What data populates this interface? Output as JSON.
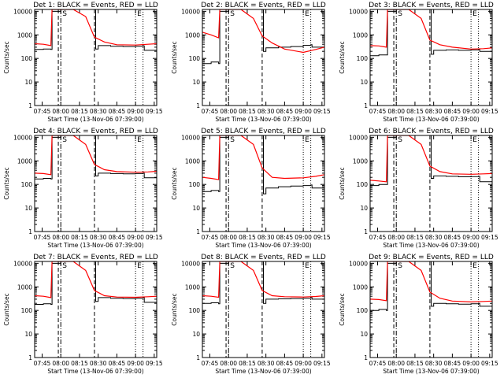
{
  "common": {
    "series": [
      {
        "name": "BLACK = Events",
        "color": "#000000"
      },
      {
        "name": "RED = LLD",
        "color": "#ff0000"
      }
    ],
    "ylabel": "Counts/sec",
    "xlabel": "Start Time (13-Nov-06 07:39:00)",
    "xticks": [
      "07:45",
      "08:00",
      "08:15",
      "08:30",
      "08:45",
      "09:00",
      "09:15"
    ],
    "yticks": [
      "1",
      "10",
      "100",
      "1000",
      "10000"
    ],
    "marks": {
      "S": "S",
      "E": "E"
    }
  },
  "chart_data": [
    {
      "type": "line",
      "title": "Det 1: BLACK = Events, RED = LLD",
      "xlim": [
        "07:39",
        "09:17"
      ],
      "ylim": [
        1,
        12000
      ],
      "yscale": "log",
      "vlines": {
        "dashdot": "08:00",
        "dashed": [
          "07:58",
          "08:27"
        ],
        "dotted": [
          "09:00",
          "09:06"
        ]
      },
      "series": [
        {
          "name": "Events",
          "x": [
            "07:39",
            "07:46",
            "07:52",
            "07:53",
            "08:00",
            "08:27",
            "08:28",
            "08:30",
            "08:40",
            "08:50",
            "09:00",
            "09:06",
            "09:07",
            "09:17"
          ],
          "values": [
            240,
            250,
            240,
            10000,
            12000,
            12000,
            250,
            350,
            330,
            320,
            330,
            340,
            220,
            200
          ]
        },
        {
          "name": "LLD",
          "x": [
            "07:39",
            "07:46",
            "07:52",
            "07:53",
            "08:00",
            "08:10",
            "08:20",
            "08:27",
            "08:35",
            "08:45",
            "09:00",
            "09:10",
            "09:17"
          ],
          "values": [
            420,
            400,
            350,
            12000,
            12000,
            12000,
            6000,
            800,
            500,
            380,
            370,
            400,
            420
          ]
        }
      ]
    },
    {
      "type": "line",
      "title": "Det 2: BLACK = Events, RED = LLD",
      "xlim": [
        "07:39",
        "09:17"
      ],
      "ylim": [
        1,
        12000
      ],
      "yscale": "log",
      "vlines": {
        "dashdot": "08:00",
        "dashed": [
          "07:58",
          "08:27"
        ],
        "dotted": [
          "09:00",
          "09:06"
        ]
      },
      "series": [
        {
          "name": "Events",
          "x": [
            "07:39",
            "07:46",
            "07:52",
            "07:53",
            "08:00",
            "08:27",
            "08:28",
            "08:30",
            "08:40",
            "08:50",
            "09:00",
            "09:06",
            "09:07",
            "09:17"
          ],
          "values": [
            60,
            70,
            60,
            10000,
            12000,
            12000,
            200,
            280,
            300,
            320,
            360,
            380,
            300,
            220
          ]
        },
        {
          "name": "LLD",
          "x": [
            "07:39",
            "07:46",
            "07:52",
            "07:53",
            "08:00",
            "08:10",
            "08:20",
            "08:27",
            "08:35",
            "08:45",
            "09:00",
            "09:10",
            "09:17"
          ],
          "values": [
            1300,
            1000,
            750,
            12000,
            12000,
            12000,
            5000,
            900,
            450,
            250,
            180,
            240,
            300
          ]
        }
      ]
    },
    {
      "type": "line",
      "title": "Det 3: BLACK = Events, RED = LLD",
      "xlim": [
        "07:39",
        "09:17"
      ],
      "ylim": [
        1,
        12000
      ],
      "yscale": "log",
      "vlines": {
        "dashdot": "08:00",
        "dashed": [
          "07:58",
          "08:27"
        ],
        "dotted": [
          "09:00",
          "09:06"
        ]
      },
      "series": [
        {
          "name": "Events",
          "x": [
            "07:39",
            "07:46",
            "07:52",
            "07:53",
            "08:00",
            "08:27",
            "08:28",
            "08:30",
            "08:40",
            "08:50",
            "09:00",
            "09:06",
            "09:07",
            "09:17"
          ],
          "values": [
            130,
            140,
            140,
            10000,
            12000,
            12000,
            150,
            220,
            230,
            220,
            230,
            240,
            200,
            180
          ]
        },
        {
          "name": "LLD",
          "x": [
            "07:39",
            "07:46",
            "07:52",
            "07:53",
            "08:00",
            "08:10",
            "08:20",
            "08:27",
            "08:35",
            "08:45",
            "09:00",
            "09:10",
            "09:17"
          ],
          "values": [
            350,
            340,
            300,
            12000,
            12000,
            12000,
            5000,
            600,
            380,
            300,
            250,
            260,
            280
          ]
        }
      ]
    },
    {
      "type": "line",
      "title": "Det 4: BLACK = Events, RED = LLD",
      "xlim": [
        "07:39",
        "09:17"
      ],
      "ylim": [
        1,
        12000
      ],
      "yscale": "log",
      "vlines": {
        "dashdot": "08:00",
        "dashed": [
          "07:58",
          "08:27"
        ],
        "dotted": [
          "09:00",
          "09:06"
        ]
      },
      "series": [
        {
          "name": "Events",
          "x": [
            "07:39",
            "07:46",
            "07:52",
            "07:53",
            "08:00",
            "08:27",
            "08:28",
            "08:30",
            "08:40",
            "08:50",
            "09:00",
            "09:06",
            "09:07",
            "09:17"
          ],
          "values": [
            170,
            180,
            170,
            10000,
            12000,
            12000,
            230,
            300,
            290,
            280,
            290,
            300,
            190,
            160
          ]
        },
        {
          "name": "LLD",
          "x": [
            "07:39",
            "07:46",
            "07:52",
            "07:53",
            "08:00",
            "08:10",
            "08:20",
            "08:27",
            "08:35",
            "08:45",
            "09:00",
            "09:10",
            "09:17"
          ],
          "values": [
            300,
            290,
            260,
            12000,
            12000,
            12000,
            5000,
            700,
            420,
            350,
            330,
            340,
            360
          ]
        }
      ]
    },
    {
      "type": "line",
      "title": "Det 5: BLACK = Events, RED = LLD",
      "xlim": [
        "07:39",
        "09:17"
      ],
      "ylim": [
        1,
        12000
      ],
      "yscale": "log",
      "vlines": {
        "dashdot": "08:00",
        "dashed": [
          "07:58",
          "08:27"
        ],
        "dotted": [
          "09:00",
          "09:06"
        ]
      },
      "series": [
        {
          "name": "Events",
          "x": [
            "07:39",
            "07:46",
            "07:52",
            "07:53",
            "08:00",
            "08:27",
            "08:28",
            "08:30",
            "08:40",
            "08:50",
            "09:00",
            "09:06",
            "09:07",
            "09:17"
          ],
          "values": [
            50,
            55,
            50,
            10000,
            12000,
            12000,
            40,
            70,
            80,
            85,
            90,
            95,
            70,
            60
          ]
        },
        {
          "name": "LLD",
          "x": [
            "07:39",
            "07:46",
            "07:52",
            "07:53",
            "08:00",
            "08:10",
            "08:20",
            "08:27",
            "08:35",
            "08:45",
            "09:00",
            "09:10",
            "09:17"
          ],
          "values": [
            200,
            180,
            160,
            12000,
            12000,
            12000,
            5000,
            500,
            200,
            180,
            190,
            220,
            260
          ]
        }
      ]
    },
    {
      "type": "line",
      "title": "Det 6: BLACK = Events, RED = LLD",
      "xlim": [
        "07:39",
        "09:17"
      ],
      "ylim": [
        1,
        12000
      ],
      "yscale": "log",
      "vlines": {
        "dashdot": "08:00",
        "dashed": [
          "07:58",
          "08:27"
        ],
        "dotted": [
          "09:00",
          "09:06"
        ]
      },
      "series": [
        {
          "name": "Events",
          "x": [
            "07:39",
            "07:46",
            "07:52",
            "07:53",
            "08:00",
            "08:27",
            "08:28",
            "08:30",
            "08:40",
            "08:50",
            "09:00",
            "09:06",
            "09:07",
            "09:17"
          ],
          "values": [
            90,
            100,
            100,
            10000,
            12000,
            12000,
            180,
            230,
            220,
            210,
            215,
            220,
            130,
            110
          ]
        },
        {
          "name": "LLD",
          "x": [
            "07:39",
            "07:46",
            "07:52",
            "07:53",
            "08:00",
            "08:10",
            "08:20",
            "08:27",
            "08:35",
            "08:45",
            "09:00",
            "09:10",
            "09:17"
          ],
          "values": [
            150,
            140,
            130,
            12000,
            12000,
            12000,
            5000,
            600,
            350,
            280,
            270,
            280,
            290
          ]
        }
      ]
    },
    {
      "type": "line",
      "title": "Det 7: BLACK = Events, RED = LLD",
      "xlim": [
        "07:39",
        "09:17"
      ],
      "ylim": [
        1,
        12000
      ],
      "yscale": "log",
      "vlines": {
        "dashdot": "08:00",
        "dashed": [
          "07:58",
          "08:27"
        ],
        "dotted": [
          "09:00",
          "09:06"
        ]
      },
      "series": [
        {
          "name": "Events",
          "x": [
            "07:39",
            "07:46",
            "07:52",
            "07:53",
            "08:00",
            "08:27",
            "08:28",
            "08:30",
            "08:40",
            "08:50",
            "09:00",
            "09:06",
            "09:07",
            "09:17"
          ],
          "values": [
            180,
            190,
            180,
            10000,
            12000,
            12000,
            240,
            350,
            330,
            320,
            330,
            350,
            220,
            200
          ]
        },
        {
          "name": "LLD",
          "x": [
            "07:39",
            "07:46",
            "07:52",
            "07:53",
            "08:00",
            "08:10",
            "08:20",
            "08:27",
            "08:35",
            "08:45",
            "09:00",
            "09:10",
            "09:17"
          ],
          "values": [
            420,
            400,
            350,
            12000,
            12000,
            12000,
            5000,
            700,
            420,
            370,
            360,
            380,
            400
          ]
        }
      ]
    },
    {
      "type": "line",
      "title": "Det 8: BLACK = Events, RED = LLD",
      "xlim": [
        "07:39",
        "09:17"
      ],
      "ylim": [
        1,
        12000
      ],
      "yscale": "log",
      "vlines": {
        "dashdot": "08:00",
        "dashed": [
          "07:58",
          "08:27"
        ],
        "dotted": [
          "09:00",
          "09:06"
        ]
      },
      "series": [
        {
          "name": "Events",
          "x": [
            "07:39",
            "07:46",
            "07:52",
            "07:53",
            "08:00",
            "08:27",
            "08:28",
            "08:30",
            "08:40",
            "08:50",
            "09:00",
            "09:06",
            "09:07",
            "09:17"
          ],
          "values": [
            200,
            210,
            190,
            10000,
            12000,
            12000,
            200,
            300,
            310,
            320,
            330,
            350,
            300,
            280
          ]
        },
        {
          "name": "LLD",
          "x": [
            "07:39",
            "07:46",
            "07:52",
            "07:53",
            "08:00",
            "08:10",
            "08:20",
            "08:27",
            "08:35",
            "08:45",
            "09:00",
            "09:10",
            "09:17"
          ],
          "values": [
            420,
            400,
            360,
            12000,
            12000,
            12000,
            5000,
            700,
            420,
            380,
            370,
            390,
            420
          ]
        }
      ]
    },
    {
      "type": "line",
      "title": "Det 9: BLACK = Events, RED = LLD",
      "xlim": [
        "07:39",
        "09:17"
      ],
      "ylim": [
        1,
        12000
      ],
      "yscale": "log",
      "vlines": {
        "dashdot": "08:00",
        "dashed": [
          "07:58",
          "08:27"
        ],
        "dotted": [
          "09:00",
          "09:06"
        ]
      },
      "series": [
        {
          "name": "Events",
          "x": [
            "07:39",
            "07:46",
            "07:52",
            "07:53",
            "08:00",
            "08:27",
            "08:28",
            "08:30",
            "08:40",
            "08:50",
            "09:00",
            "09:06",
            "09:07",
            "09:17"
          ],
          "values": [
            100,
            110,
            100,
            10000,
            12000,
            12000,
            150,
            200,
            190,
            185,
            190,
            200,
            150,
            140
          ]
        },
        {
          "name": "LLD",
          "x": [
            "07:39",
            "07:46",
            "07:52",
            "07:53",
            "08:00",
            "08:10",
            "08:20",
            "08:27",
            "08:35",
            "08:45",
            "09:00",
            "09:10",
            "09:17"
          ],
          "values": [
            300,
            290,
            260,
            12000,
            12000,
            12000,
            5000,
            600,
            330,
            250,
            230,
            240,
            250
          ]
        }
      ]
    }
  ]
}
